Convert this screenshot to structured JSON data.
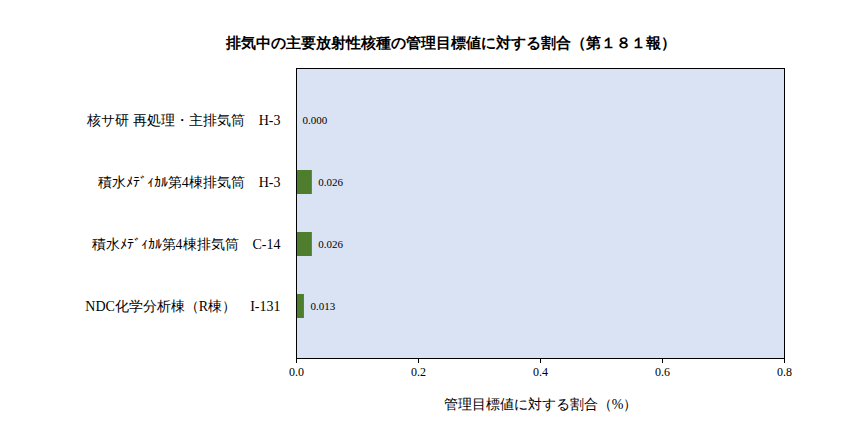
{
  "chart_data": {
    "type": "bar",
    "orientation": "horizontal",
    "title": "排気中の主要放射性核種の管理目標値に対する割合（第１８１報）",
    "x_label": "管理目標値に対する割合（%）",
    "categories": [
      "核サ研 再処理・主排気筒　H-3",
      "積水ﾒﾃﾞｨｶﾙ第4棟排気筒　H-3",
      "積水ﾒﾃﾞｨｶﾙ第4棟排気筒　C-14",
      "NDC化学分析棟（R棟）　I-131"
    ],
    "values": [
      0.0,
      0.026,
      0.026,
      0.013
    ],
    "value_labels": [
      "0.000",
      "0.026",
      "0.026",
      "0.013"
    ],
    "data_labels": true,
    "color": "#4e7d2e",
    "xlim": [
      0,
      0.8
    ],
    "xticks": [
      {
        "value": 0,
        "label": "0.0"
      },
      {
        "value": 0.2,
        "label": "0.2"
      },
      {
        "value": 0.4,
        "label": "0.4"
      },
      {
        "value": 0.6,
        "label": "0.6"
      },
      {
        "value": 0.8,
        "label": "0.8"
      }
    ],
    "grid": false
  }
}
